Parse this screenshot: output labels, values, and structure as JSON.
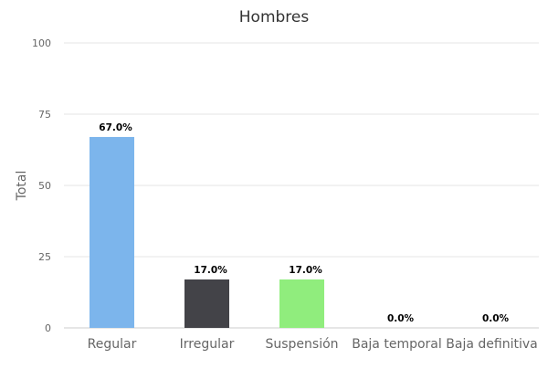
{
  "chart_data": {
    "type": "bar",
    "title": "Hombres",
    "ylabel": "Total",
    "xlabel": "",
    "categories": [
      "Regular",
      "Irregular",
      "Suspensión",
      "Baja temporal",
      "Baja definitiva"
    ],
    "values": [
      67,
      17,
      17,
      0,
      0
    ],
    "data_labels": [
      "67.0%",
      "17.0%",
      "17.0%",
      "0.0%",
      "0.0%"
    ],
    "colors": [
      "#7cb5ec",
      "#434348",
      "#90ed7d",
      "#f7a35c",
      "#8085e9"
    ],
    "ylim": [
      0,
      100
    ],
    "yticks": [
      0,
      25,
      50,
      75,
      100
    ],
    "grid": true,
    "legend": "none"
  }
}
